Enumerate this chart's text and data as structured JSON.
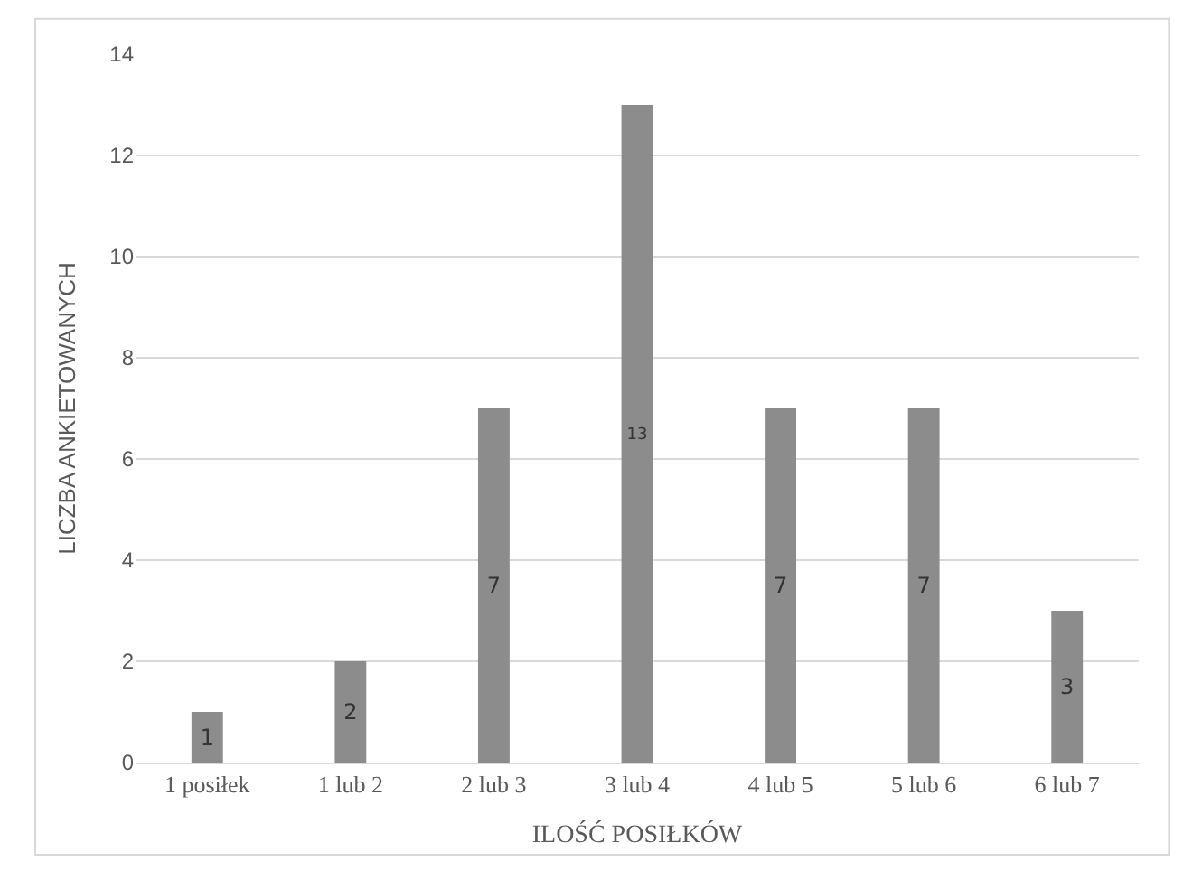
{
  "chart_data": {
    "type": "bar",
    "xlabel": "ILOŚĆ POSIŁKÓW",
    "ylabel": "LICZBA ANKIETOWANYCH",
    "categories": [
      "1 posiłek",
      "1 lub 2",
      "2 lub 3",
      "3 lub 4",
      "4 lub 5",
      "5 lub 6",
      "6 lub 7"
    ],
    "values": [
      1,
      2,
      7,
      13,
      7,
      7,
      3
    ],
    "color": "#8c8c8c",
    "ylim": [
      0,
      14
    ],
    "yticks": [
      0,
      2,
      4,
      6,
      8,
      10,
      12,
      14
    ],
    "grid": "y",
    "data_labels": true,
    "legend": false
  }
}
